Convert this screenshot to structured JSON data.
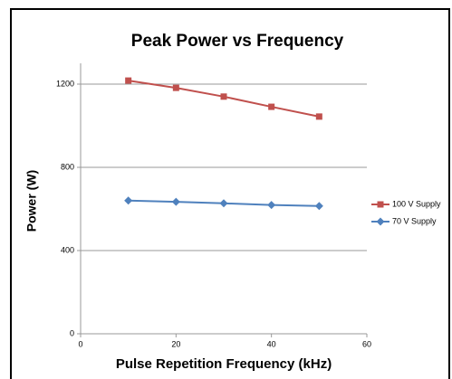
{
  "chart_data": {
    "type": "line",
    "title": "Peak Power vs Frequency",
    "x_label": "Pulse Repetition Frequency (kHz)",
    "y_label": "Power (W)",
    "x": [
      10,
      20,
      30,
      40,
      50
    ],
    "series": [
      {
        "name": "100 V Supply",
        "color": "#c0504d",
        "marker": "square",
        "values": [
          1217,
          1182,
          1140,
          1091,
          1044
        ]
      },
      {
        "name": "70 V Supply",
        "color": "#4f81bd",
        "marker": "diamond",
        "values": [
          640,
          634,
          627,
          619,
          614
        ]
      }
    ],
    "xlim": [
      0,
      60
    ],
    "xticks": [
      0,
      20,
      40,
      60
    ],
    "ylim": [
      0,
      1300
    ],
    "yticks": [
      0,
      400,
      800,
      1200
    ],
    "grid": true,
    "legend": "right"
  }
}
